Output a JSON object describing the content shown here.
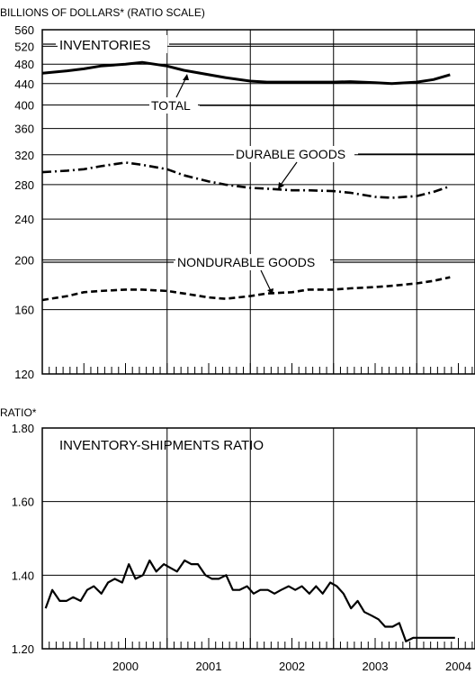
{
  "chart_data": [
    {
      "type": "line",
      "scale": "log",
      "ylabel": "BILLIONS OF DOLLARS* (RATIO SCALE)",
      "ylim": [
        120,
        560
      ],
      "yticks": [
        120,
        160,
        200,
        240,
        280,
        320,
        360,
        400,
        440,
        480,
        520,
        560
      ],
      "xlim": [
        1999.5,
        2004.7
      ],
      "grid": true,
      "series": [
        {
          "name": "INVENTORIES TOTAL",
          "style": "solid",
          "x": [
            1999.5,
            1999.8,
            2000.0,
            2000.2,
            2000.5,
            2000.7,
            2001.0,
            2001.2,
            2001.5,
            2001.7,
            2002.0,
            2002.2,
            2002.5,
            2002.7,
            2003.0,
            2003.2,
            2003.5,
            2003.7,
            2004.0,
            2004.2,
            2004.4
          ],
          "values": [
            461,
            466,
            470,
            476,
            480,
            484,
            476,
            467,
            458,
            452,
            445,
            443,
            443,
            443,
            443,
            444,
            442,
            440,
            443,
            448,
            458
          ]
        },
        {
          "name": "DURABLE GOODS",
          "style": "dash-dot",
          "x": [
            1999.5,
            1999.8,
            2000.0,
            2000.2,
            2000.5,
            2000.7,
            2001.0,
            2001.2,
            2001.5,
            2001.7,
            2002.0,
            2002.2,
            2002.5,
            2002.7,
            2003.0,
            2003.2,
            2003.5,
            2003.7,
            2004.0,
            2004.2,
            2004.4
          ],
          "values": [
            296,
            298,
            300,
            304,
            309,
            306,
            300,
            292,
            284,
            280,
            276,
            275,
            273,
            273,
            272,
            270,
            265,
            264,
            266,
            271,
            278
          ]
        },
        {
          "name": "NONDURABLE GOODS",
          "style": "dashed",
          "x": [
            1999.5,
            1999.8,
            2000.0,
            2000.2,
            2000.5,
            2000.7,
            2001.0,
            2001.2,
            2001.5,
            2001.7,
            2002.0,
            2002.2,
            2002.5,
            2002.7,
            2003.0,
            2003.2,
            2003.5,
            2003.7,
            2004.0,
            2004.2,
            2004.4
          ],
          "values": [
            167,
            170,
            173,
            174,
            175,
            175,
            174,
            172,
            169,
            168,
            170,
            172,
            173,
            175,
            175,
            176,
            177,
            178,
            180,
            182,
            185
          ]
        }
      ],
      "annotations": [
        "INVENTORIES",
        "TOTAL",
        "DURABLE GOODS",
        "NONDURABLE GOODS"
      ]
    },
    {
      "type": "line",
      "ylabel": "RATIO*",
      "ylim": [
        1.2,
        1.8
      ],
      "yticks": [
        "1.20",
        "1.40",
        "1.60",
        "1.80"
      ],
      "xlim": [
        1999.5,
        2004.7
      ],
      "categories": [
        "2000",
        "2001",
        "2002",
        "2003",
        "2004"
      ],
      "grid": true,
      "series": [
        {
          "name": "INVENTORY-SHIPMENTS RATIO",
          "style": "solid",
          "x": [
            1999.54,
            1999.62,
            1999.71,
            1999.79,
            1999.87,
            1999.96,
            2000.04,
            2000.12,
            2000.21,
            2000.29,
            2000.37,
            2000.46,
            2000.54,
            2000.62,
            2000.71,
            2000.79,
            2000.87,
            2000.96,
            2001.04,
            2001.12,
            2001.21,
            2001.29,
            2001.37,
            2001.46,
            2001.54,
            2001.62,
            2001.71,
            2001.79,
            2001.87,
            2001.96,
            2002.04,
            2002.12,
            2002.21,
            2002.29,
            2002.37,
            2002.46,
            2002.54,
            2002.62,
            2002.71,
            2002.79,
            2002.87,
            2002.96,
            2003.04,
            2003.12,
            2003.21,
            2003.29,
            2003.37,
            2003.46,
            2003.54,
            2003.62,
            2003.71,
            2003.79,
            2003.87,
            2003.96,
            2004.04,
            2004.12,
            2004.21,
            2004.29,
            2004.37,
            2004.46
          ],
          "values": [
            1.31,
            1.36,
            1.33,
            1.33,
            1.34,
            1.33,
            1.36,
            1.37,
            1.35,
            1.38,
            1.39,
            1.38,
            1.43,
            1.39,
            1.4,
            1.44,
            1.41,
            1.43,
            1.42,
            1.41,
            1.44,
            1.43,
            1.43,
            1.4,
            1.39,
            1.39,
            1.4,
            1.36,
            1.36,
            1.37,
            1.35,
            1.36,
            1.36,
            1.35,
            1.36,
            1.37,
            1.36,
            1.37,
            1.35,
            1.37,
            1.35,
            1.38,
            1.37,
            1.35,
            1.31,
            1.33,
            1.3,
            1.29,
            1.28,
            1.26,
            1.26,
            1.27,
            1.22,
            1.23,
            1.23,
            1.23,
            1.23,
            1.23,
            1.23,
            1.23
          ]
        }
      ]
    }
  ]
}
